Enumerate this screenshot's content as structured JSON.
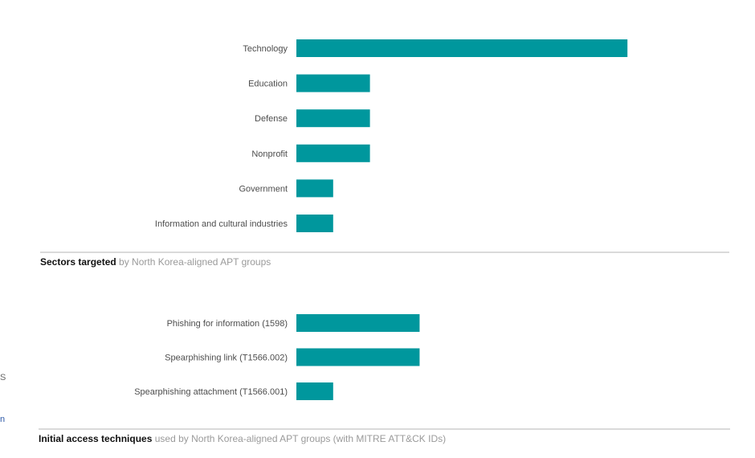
{
  "chart_data": [
    {
      "type": "bar",
      "orientation": "horizontal",
      "categories": [
        "Technology",
        "Education",
        "Defense",
        "Nonprofit",
        "Government",
        "Information and cultural industries"
      ],
      "values": [
        9,
        2,
        2,
        2,
        1,
        1
      ],
      "xlim": [
        0,
        9
      ],
      "grid": false,
      "legend": "none",
      "color": "#00979d",
      "caption_bold": "Sectors targeted",
      "caption_rest": " by North Korea-aligned APT groups"
    },
    {
      "type": "bar",
      "orientation": "horizontal",
      "categories": [
        "Phishing for information (1598)",
        "Spearphishing link (T1566.002)",
        "Spearphishing attachment (T1566.001)"
      ],
      "values": [
        3.35,
        3.35,
        1
      ],
      "xlim": [
        0,
        9
      ],
      "grid": false,
      "legend": "none",
      "color": "#00979d",
      "caption_bold": "Initial access techniques",
      "caption_rest": " used by North Korea-aligned APT groups (with MITRE ATT&CK IDs)"
    }
  ],
  "edge_fragments": [
    {
      "text": "S",
      "color": "#666666"
    },
    {
      "text": "n",
      "color": "#2f5aa8"
    }
  ]
}
